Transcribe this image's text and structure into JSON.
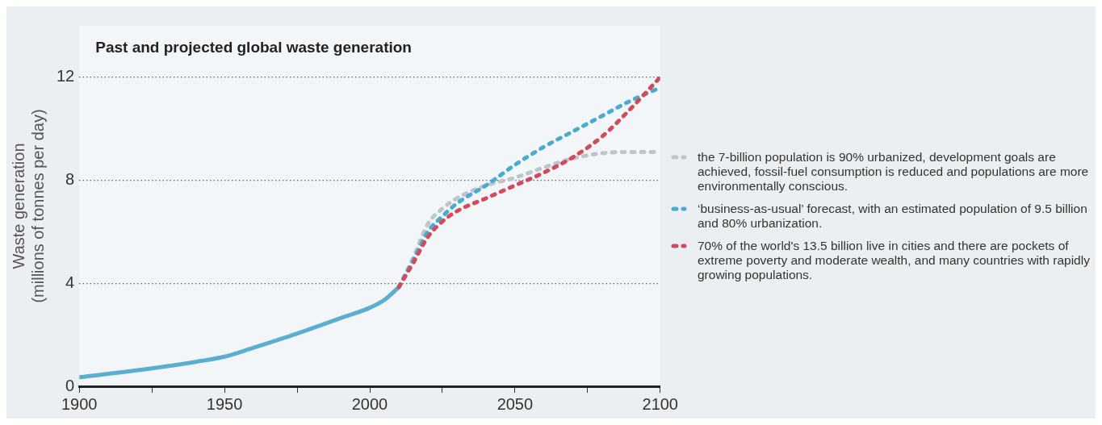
{
  "chart_data": {
    "type": "line",
    "title": "Past and projected global waste generation",
    "ylabel": "Waste generation (millions of tonnes per day)",
    "xlim": [
      1900,
      2100
    ],
    "xticks": [
      1900,
      {
        "value": 1925,
        "label": null
      },
      1950,
      {
        "value": 1975,
        "label": null
      },
      2000,
      {
        "value": 2025,
        "label": null
      },
      2050,
      {
        "value": 2075,
        "label": null
      },
      2100
    ],
    "ylim": [
      0,
      14
    ],
    "yticks": [
      0,
      4,
      8,
      12
    ],
    "grid": "y",
    "legend": "right",
    "marker": "none",
    "series": [
      {
        "color": "#5aaed0",
        "line_style": "solid",
        "x": [
          1900,
          1925,
          1940,
          1950,
          1960,
          1975,
          1990,
          2000,
          2005,
          2010
        ],
        "values": [
          0.35,
          0.7,
          0.95,
          1.15,
          1.5,
          2.05,
          2.65,
          3.05,
          3.35,
          3.85
        ]
      },
      {
        "name": "the 7-billion population is 90% urbanized, development goals are achieved, fossil-fuel consumption is reduced and populations are more environmentally conscious.",
        "color": "#bfc6c8",
        "line_style": "dotted",
        "x": [
          2010,
          2015,
          2020,
          2025,
          2030,
          2040,
          2050,
          2060,
          2070,
          2080,
          2090,
          2100
        ],
        "values": [
          3.85,
          5.0,
          6.3,
          6.9,
          7.3,
          7.8,
          8.1,
          8.5,
          8.85,
          9.05,
          9.1,
          9.1
        ]
      },
      {
        "name": "‘business-as-usual’ forecast, with an estimated population of 9.5 billion and 80% urbanization.",
        "color": "#4aaacf",
        "line_style": "dotted",
        "x": [
          2010,
          2015,
          2020,
          2025,
          2030,
          2040,
          2050,
          2060,
          2070,
          2080,
          2090,
          2100
        ],
        "values": [
          3.85,
          4.9,
          6.0,
          6.6,
          7.1,
          7.8,
          8.6,
          9.3,
          9.9,
          10.5,
          11.1,
          11.6
        ]
      },
      {
        "name": "70% of the world's 13.5 billion live in cities and there are pockets of extreme poverty and moderate wealth, and many countries with rapidly growing populations.",
        "color": "#d24a5c",
        "line_style": "dotted",
        "x": [
          2010,
          2015,
          2020,
          2025,
          2030,
          2040,
          2050,
          2060,
          2070,
          2080,
          2090,
          2100
        ],
        "values": [
          3.85,
          4.8,
          5.8,
          6.4,
          6.8,
          7.3,
          7.8,
          8.3,
          8.9,
          9.7,
          10.8,
          12.0
        ]
      }
    ]
  }
}
